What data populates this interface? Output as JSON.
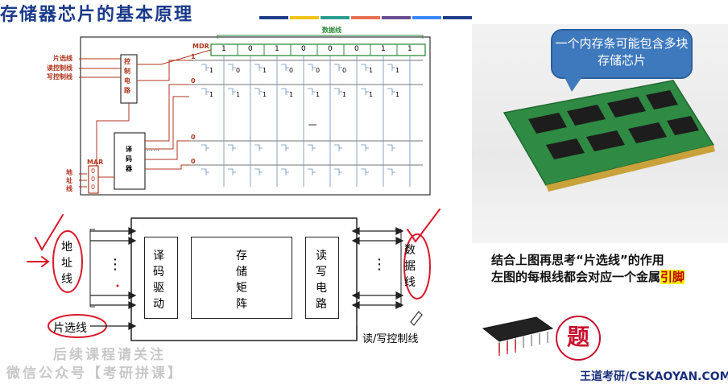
{
  "slide": {
    "title": "存储器芯片的基本原理",
    "title_bar_colors": [
      "#1f3c88",
      "#f0c419",
      "#2a9d8f",
      "#e76f51",
      "#6a4c93",
      "#3a86ff"
    ]
  },
  "top_diagram": {
    "data_line_label": "数据线",
    "mdr_label": "MDR",
    "mdr_bits": [
      "1",
      "0",
      "1",
      "0",
      "0",
      "0",
      "1",
      "1"
    ],
    "left_labels": [
      "片选线",
      "读控制线",
      "写控制线"
    ],
    "control_circuit_label": "控制电路",
    "decoder_label": "译码器",
    "mar_label": "MAR",
    "mar_bits": [
      "0",
      "0",
      "0"
    ],
    "address_line_label": "地址线",
    "row_values": [
      "1",
      "0",
      "0",
      "0"
    ],
    "cell_row1": [
      "1",
      "0",
      "1",
      "0",
      "0",
      "0",
      "1",
      "1"
    ],
    "cell_row2": [
      "1",
      "1",
      "1",
      "1",
      "1",
      "1",
      "1",
      "1"
    ],
    "ellipsis": "……"
  },
  "bottom_diagram": {
    "address_line_label": "地址线",
    "data_line_label": "数据线",
    "chip_select_label": "片选线",
    "rw_control_label": "读/写控制线",
    "decode_driver_label": "译码驱动",
    "storage_matrix_label": "存储矩阵",
    "rw_circuit_label": "读写电路",
    "dots": "⋮"
  },
  "ram_photo": {
    "callout_text": "一个内存条可能包含多块存储芯片"
  },
  "notes": {
    "line1": "结合上图再思考“片选线”的作用",
    "line2_prefix": "左图的每根线都会对应一个金属",
    "line2_highlight": "引脚"
  },
  "watermark": {
    "line1": "后续课程请关注",
    "line2": "微信公众号【考研拼课】"
  },
  "brand": {
    "text": "王道考研/CSKAOYAN.COM",
    "stamp_text": "题"
  }
}
